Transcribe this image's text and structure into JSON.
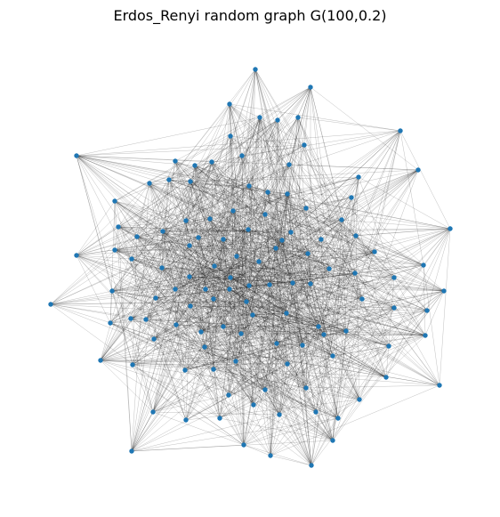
{
  "title": "Erdos_Renyi random graph G(100,0.2)",
  "graph": {
    "model": "Erdos-Renyi",
    "n": 100,
    "p": 0.2,
    "node_color": "#1f77b4",
    "edge_color": "#000000",
    "background": "#ffffff"
  }
}
